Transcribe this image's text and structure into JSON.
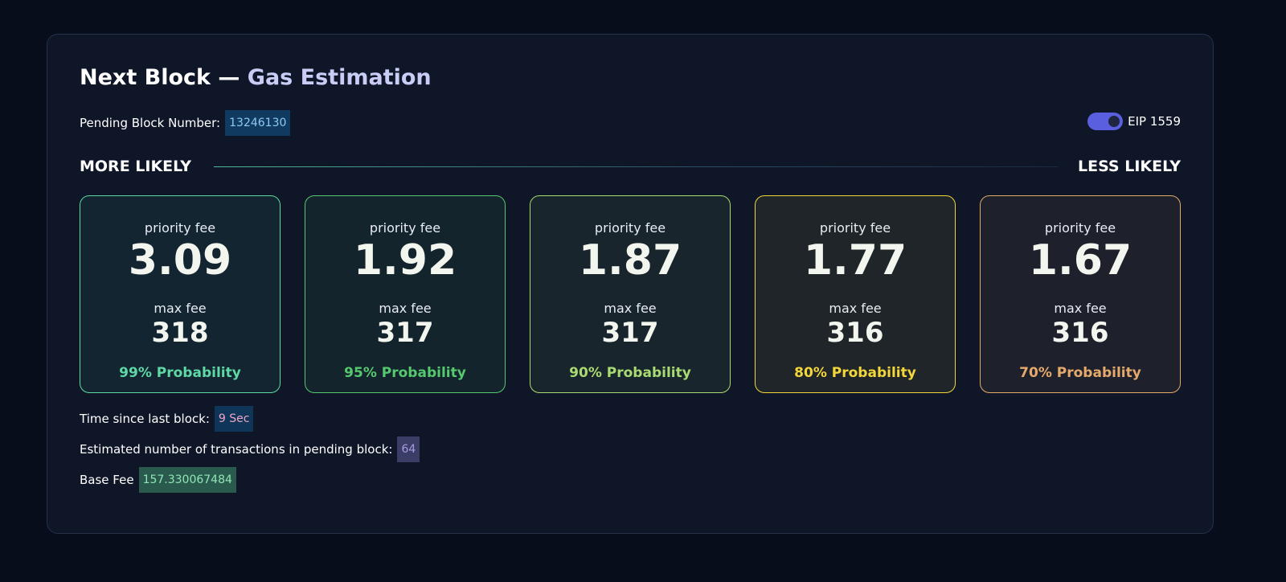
{
  "header": {
    "title_main": "Next Block —",
    "title_accent": "Gas Estimation"
  },
  "pending": {
    "label": "Pending Block Number:",
    "value": "13246130"
  },
  "toggle": {
    "label": "EIP 1559",
    "on": true
  },
  "scale": {
    "left": "MORE LIKELY",
    "right": "LESS LIKELY"
  },
  "cards": [
    {
      "priority_label": "priority fee",
      "priority": "3.09",
      "max_label": "max fee",
      "max": "318",
      "probability": "99% Probability",
      "color": "#5ed8a4"
    },
    {
      "priority_label": "priority fee",
      "priority": "1.92",
      "max_label": "max fee",
      "max": "317",
      "probability": "95% Probability",
      "color": "#56c96e"
    },
    {
      "priority_label": "priority fee",
      "priority": "1.87",
      "max_label": "max fee",
      "max": "317",
      "probability": "90% Probability",
      "color": "#a9db72"
    },
    {
      "priority_label": "priority fee",
      "priority": "1.77",
      "max_label": "max fee",
      "max": "316",
      "probability": "80% Probability",
      "color": "#f3d73a"
    },
    {
      "priority_label": "priority fee",
      "priority": "1.67",
      "max_label": "max fee",
      "max": "316",
      "probability": "70% Probability",
      "color": "#e6a96c"
    }
  ],
  "footer": [
    {
      "label": "Time since last block:",
      "value": "9 Sec",
      "color": "#f0a6c8",
      "bg": "#0f3658"
    },
    {
      "label": "Estimated number of transactions in pending block:",
      "value": "64",
      "color": "#a99ae0",
      "bg": "#3a3d66"
    },
    {
      "label": "Base Fee",
      "value": "157.330067484",
      "color": "#8fe6b4",
      "bg": "#2a5a4e"
    }
  ]
}
